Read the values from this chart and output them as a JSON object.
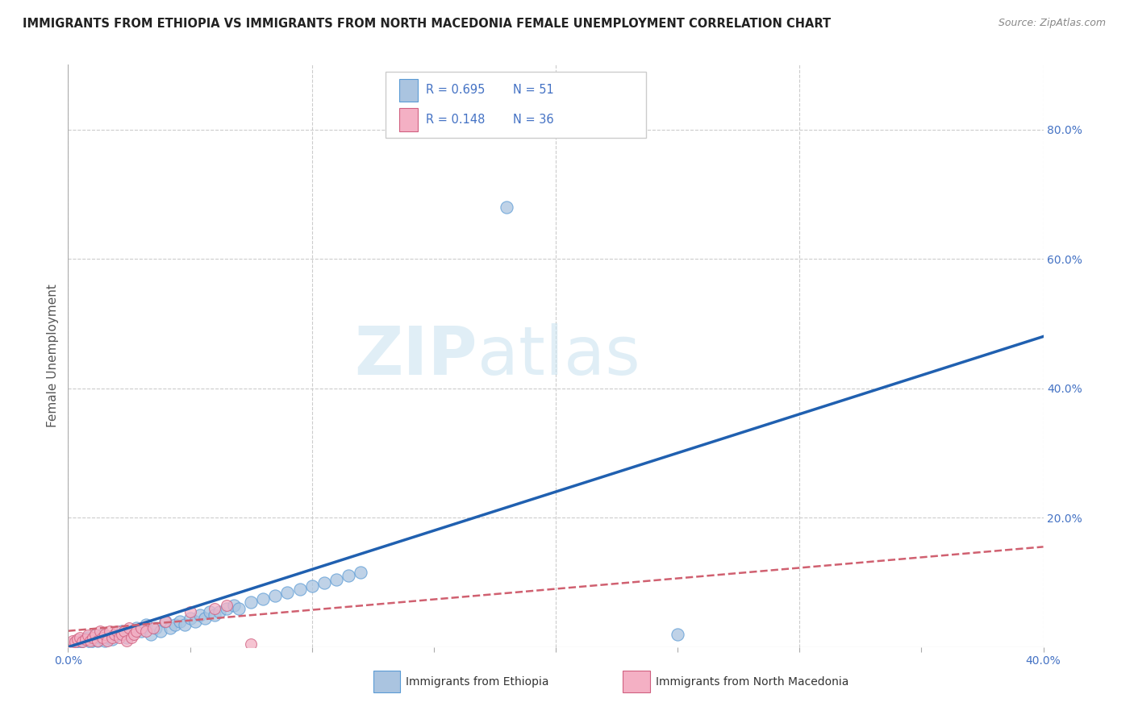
{
  "title": "IMMIGRANTS FROM ETHIOPIA VS IMMIGRANTS FROM NORTH MACEDONIA FEMALE UNEMPLOYMENT CORRELATION CHART",
  "source": "Source: ZipAtlas.com",
  "ylabel": "Female Unemployment",
  "xlim": [
    0.0,
    0.4
  ],
  "ylim": [
    0.0,
    0.9
  ],
  "yticks_right": [
    0.0,
    0.2,
    0.4,
    0.6,
    0.8
  ],
  "yticklabels_right": [
    "",
    "20.0%",
    "40.0%",
    "60.0%",
    "80.0%"
  ],
  "grid_color": "#cccccc",
  "background_color": "#ffffff",
  "ethiopia_color": "#aac4e0",
  "ethiopia_edge": "#5b9bd5",
  "macedonia_color": "#f4b0c4",
  "macedonia_edge": "#d06080",
  "trend_ethiopia_color": "#2060b0",
  "trend_macedonia_color": "#d06070",
  "R_ethiopia": 0.695,
  "N_ethiopia": 51,
  "R_macedonia": 0.148,
  "N_macedonia": 36,
  "legend_label_ethiopia": "Immigrants from Ethiopia",
  "legend_label_macedonia": "Immigrants from North Macedonia",
  "watermark_zip": "ZIP",
  "watermark_atlas": "atlas",
  "ethiopia_scatter_x": [
    0.003,
    0.005,
    0.006,
    0.007,
    0.008,
    0.009,
    0.01,
    0.011,
    0.012,
    0.013,
    0.014,
    0.015,
    0.016,
    0.018,
    0.02,
    0.022,
    0.024,
    0.026,
    0.028,
    0.03,
    0.032,
    0.034,
    0.036,
    0.038,
    0.04,
    0.042,
    0.044,
    0.046,
    0.048,
    0.05,
    0.052,
    0.054,
    0.056,
    0.058,
    0.06,
    0.062,
    0.065,
    0.068,
    0.07,
    0.075,
    0.08,
    0.085,
    0.09,
    0.095,
    0.1,
    0.105,
    0.11,
    0.115,
    0.12,
    0.18,
    0.25
  ],
  "ethiopia_scatter_y": [
    0.005,
    0.008,
    0.01,
    0.012,
    0.015,
    0.008,
    0.012,
    0.018,
    0.01,
    0.015,
    0.02,
    0.01,
    0.015,
    0.012,
    0.018,
    0.025,
    0.015,
    0.02,
    0.03,
    0.025,
    0.035,
    0.02,
    0.03,
    0.025,
    0.04,
    0.03,
    0.035,
    0.04,
    0.035,
    0.045,
    0.04,
    0.05,
    0.045,
    0.055,
    0.05,
    0.055,
    0.06,
    0.065,
    0.06,
    0.07,
    0.075,
    0.08,
    0.085,
    0.09,
    0.095,
    0.1,
    0.105,
    0.11,
    0.115,
    0.68,
    0.02
  ],
  "macedonia_scatter_x": [
    0.001,
    0.002,
    0.003,
    0.004,
    0.005,
    0.006,
    0.007,
    0.008,
    0.009,
    0.01,
    0.011,
    0.012,
    0.013,
    0.014,
    0.015,
    0.016,
    0.017,
    0.018,
    0.019,
    0.02,
    0.021,
    0.022,
    0.023,
    0.024,
    0.025,
    0.026,
    0.027,
    0.028,
    0.03,
    0.032,
    0.035,
    0.04,
    0.05,
    0.06,
    0.065,
    0.075
  ],
  "macedonia_scatter_y": [
    0.005,
    0.01,
    0.008,
    0.012,
    0.015,
    0.008,
    0.012,
    0.018,
    0.01,
    0.015,
    0.02,
    0.01,
    0.025,
    0.015,
    0.02,
    0.01,
    0.025,
    0.015,
    0.02,
    0.025,
    0.015,
    0.02,
    0.025,
    0.01,
    0.03,
    0.015,
    0.02,
    0.025,
    0.03,
    0.025,
    0.03,
    0.04,
    0.055,
    0.06,
    0.065,
    0.005
  ],
  "ethiopia_trend_x": [
    0.0,
    0.4
  ],
  "ethiopia_trend_y": [
    0.0,
    0.48
  ],
  "macedonia_trend_x": [
    0.0,
    0.4
  ],
  "macedonia_trend_y": [
    0.025,
    0.155
  ]
}
